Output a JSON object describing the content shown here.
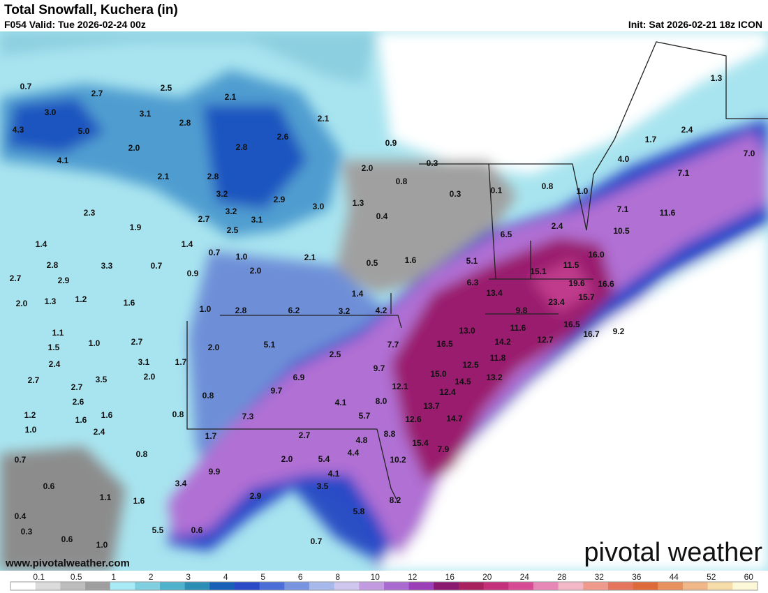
{
  "header": {
    "title": "Total Snowfall, Kuchera (in)",
    "valid": "F054 Valid: Tue 2026-02-24 00z",
    "init": "Init: Sat 2026-02-21 18z ICON"
  },
  "map": {
    "labels": [
      "0.7",
      "2.7",
      "2.5",
      "2.1",
      "3.0",
      "3.1",
      "5.0",
      "4.3",
      "2.8",
      "2.1",
      "2.8",
      "2.6",
      "2.0",
      "0.9",
      "4.1",
      "2.0",
      "0.3",
      "2.1",
      "2.8",
      "0.8",
      "0.3",
      "0.1",
      "0.8",
      "1.0",
      "3.2",
      "2.9",
      "2.3",
      "3.2",
      "3.0",
      "1.3",
      "0.4",
      "2.7",
      "3.1",
      "1.9",
      "2.5",
      "6.5",
      "2.4",
      "7.1",
      "11.6",
      "10.5",
      "1.4",
      "1.4",
      "0.7",
      "1.0",
      "2.1",
      "0.5",
      "1.6",
      "5.1",
      "16.0",
      "11.5",
      "15.1",
      "2.8",
      "3.3",
      "0.7",
      "0.9",
      "2.0",
      "6.3",
      "19.6",
      "16.6",
      "2.7",
      "2.9",
      "13.4",
      "15.7",
      "23.4",
      "2.0",
      "1.3",
      "1.2",
      "1.6",
      "1.4",
      "1.0",
      "2.8",
      "6.2",
      "3.2",
      "4.2",
      "9.8",
      "1.1",
      "13.0",
      "11.6",
      "16.5",
      "16.7",
      "9.2",
      "1.5",
      "1.0",
      "2.7",
      "2.0",
      "5.1",
      "7.7",
      "16.5",
      "14.2",
      "12.7",
      "2.4",
      "3.1",
      "1.7",
      "2.5",
      "9.7",
      "12.5",
      "11.8",
      "2.7",
      "2.7",
      "3.5",
      "2.0",
      "6.9",
      "15.0",
      "14.5",
      "13.2",
      "12.1",
      "2.6",
      "9.7",
      "0.8",
      "4.1",
      "8.0",
      "12.4",
      "13.7",
      "1.2",
      "1.6",
      "1.6",
      "0.8",
      "7.3",
      "5.7",
      "14.7",
      "1.0",
      "2.4",
      "12.6",
      "1.7",
      "2.7",
      "8.8",
      "4.8",
      "15.4",
      "0.8",
      "7.9",
      "4.4",
      "0.7",
      "2.0",
      "5.4",
      "10.2",
      "9.9",
      "4.1",
      "0.6",
      "3.4",
      "3.5",
      "1.1",
      "8.2",
      "2.9",
      "1.6",
      "5.8",
      "0.4",
      "0.3",
      "5.5",
      "0.6",
      "0.6",
      "0.7",
      "1.0",
      "1.3",
      "2.4",
      "1.7",
      "4.0",
      "7.0",
      "7.1"
    ]
  },
  "footer": {
    "website": "www.pivotalweather.com",
    "logo": "pivotal weather"
  },
  "colorbar": {
    "labels": [
      "0.1",
      "0.5",
      "1",
      "2",
      "3",
      "4",
      "5",
      "6",
      "8",
      "10",
      "12",
      "16",
      "20",
      "24",
      "28",
      "32",
      "36",
      "44",
      "52",
      "60"
    ],
    "colors": [
      "#ffffff",
      "#dcdcdc",
      "#bdbdbd",
      "#9e9e9e",
      "#a8eaf5",
      "#7fcfe0",
      "#4fb2cc",
      "#2b8fb5",
      "#1a5fb8",
      "#2a48c8",
      "#4d6ed8",
      "#7a95e0",
      "#a6b9ea",
      "#cfc7ee",
      "#c19ae0",
      "#a96bd0",
      "#9a3fb8",
      "#8a1a70",
      "#a8205e",
      "#c4307a",
      "#d94a94",
      "#e887b6",
      "#f2b8c8",
      "#ee9a8c",
      "#e6755e",
      "#de6a3c",
      "#e89060",
      "#f0b888",
      "#f5dca8",
      "#fdf8d8"
    ]
  }
}
